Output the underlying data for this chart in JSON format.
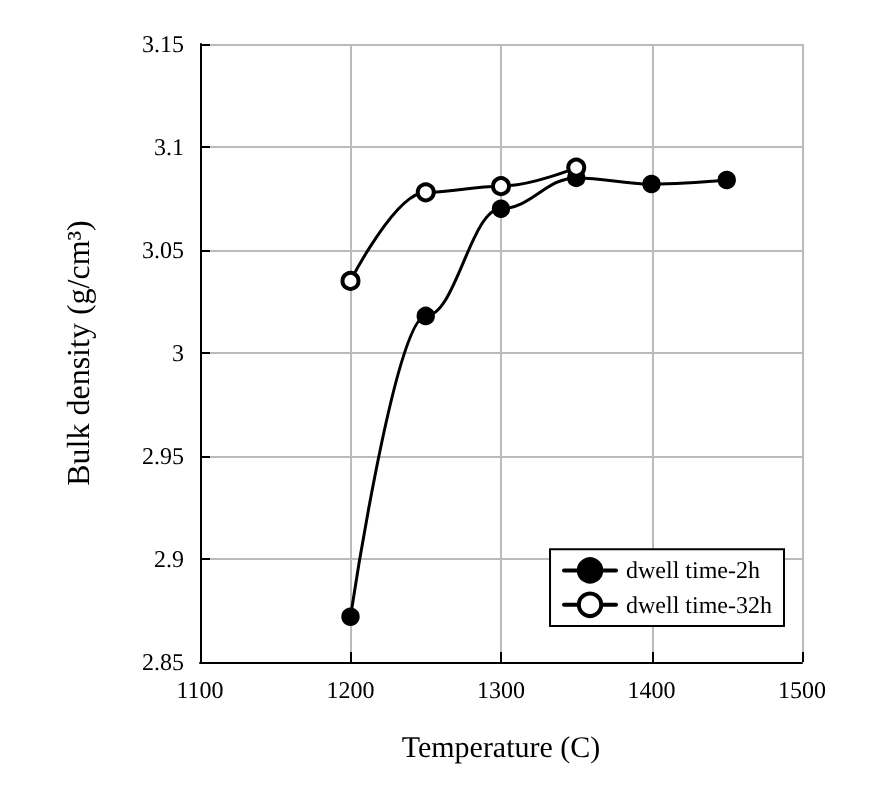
{
  "chart_data": {
    "type": "line",
    "xlabel": "Temperature (C)",
    "ylabel": "Bulk density (g/cm³)",
    "x": [
      1200,
      1250,
      1300,
      1350,
      1400,
      1450
    ],
    "series": [
      {
        "name": "dwell time-2h",
        "color": "#000000",
        "values": [
          2.872,
          3.018,
          3.07,
          3.085,
          3.082,
          3.084
        ]
      },
      {
        "name": "dwell time-32h",
        "color": "#000000",
        "x": [
          1200,
          1250,
          1300,
          1350
        ],
        "values": [
          3.035,
          3.078,
          3.081,
          3.09
        ]
      }
    ],
    "xlim": [
      1100,
      1500
    ],
    "xticks": [
      1100,
      1200,
      1300,
      1400,
      1500
    ],
    "ylim": [
      2.85,
      3.15
    ],
    "yticks": [
      2.85,
      2.9,
      2.95,
      3,
      3.05,
      3.1,
      3.15
    ],
    "grid": true,
    "legend": "bottom right",
    "marker": "circle",
    "line_style": "solid"
  }
}
